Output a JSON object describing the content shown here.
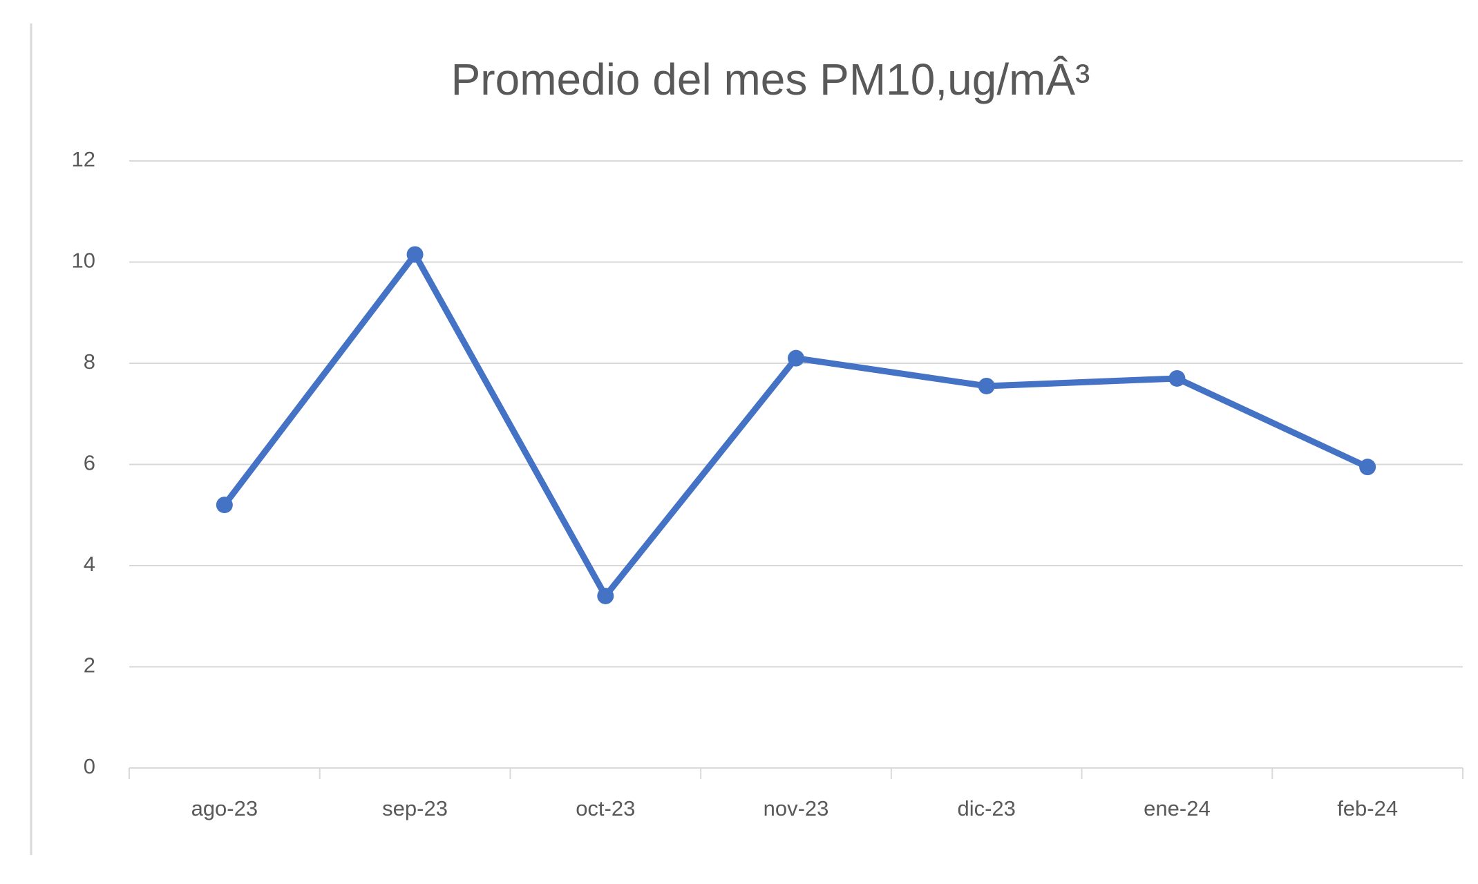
{
  "chart_data": {
    "type": "line",
    "title": "Promedio del mes PM10,ug/mÂ³",
    "categories": [
      "ago-23",
      "sep-23",
      "oct-23",
      "nov-23",
      "dic-23",
      "ene-24",
      "feb-24"
    ],
    "series": [
      {
        "name": "Promedio del mes PM10",
        "color": "#4472c4",
        "values": [
          5.2,
          10.15,
          3.4,
          8.1,
          7.55,
          7.7,
          5.95
        ]
      }
    ],
    "ylim": [
      0,
      12
    ],
    "yticks": [
      0,
      2,
      4,
      6,
      8,
      10,
      12
    ],
    "grid": true
  }
}
